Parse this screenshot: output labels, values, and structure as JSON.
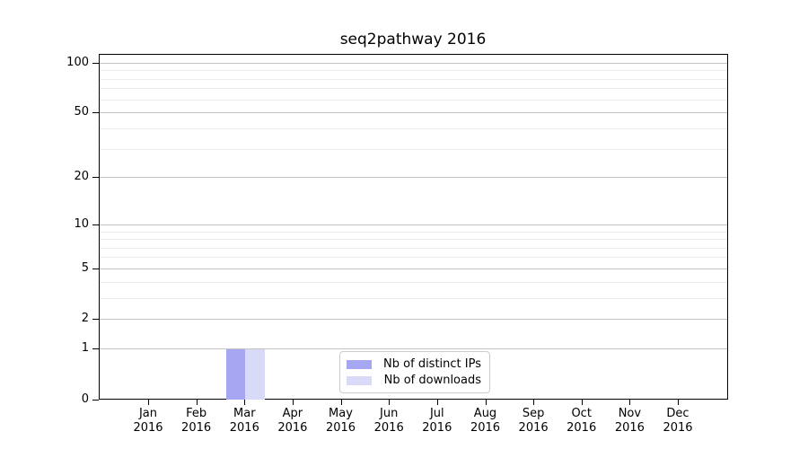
{
  "chart_data": {
    "type": "bar",
    "title": "seq2pathway 2016",
    "year_label": "2016",
    "categories": [
      "Jan",
      "Feb",
      "Mar",
      "Apr",
      "May",
      "Jun",
      "Jul",
      "Aug",
      "Sep",
      "Oct",
      "Nov",
      "Dec"
    ],
    "series": [
      {
        "name": "Nb of distinct IPs",
        "color": "#a6a6f2",
        "values": [
          0,
          0,
          1,
          0,
          0,
          0,
          0,
          0,
          0,
          0,
          0,
          0
        ]
      },
      {
        "name": "Nb of downloads",
        "color": "#d9d9f8",
        "values": [
          0,
          0,
          1,
          0,
          0,
          0,
          0,
          0,
          0,
          0,
          0,
          0
        ]
      }
    ],
    "y_ticks": [
      0,
      1,
      2,
      5,
      10,
      20,
      50,
      100
    ],
    "ylim": [
      0,
      112
    ],
    "y_scale": "log10(1+v)",
    "xlabel": "",
    "ylabel": "",
    "grid": "horizontal",
    "legend_position": "lower center"
  },
  "styles": {
    "major_grid_color": "#c3c3c3",
    "minor_grid_color": "#eaeaea",
    "axis_color": "#000000",
    "text_color": "#000000",
    "legend_border_color": "#cccccc",
    "background_color": "#ffffff"
  }
}
